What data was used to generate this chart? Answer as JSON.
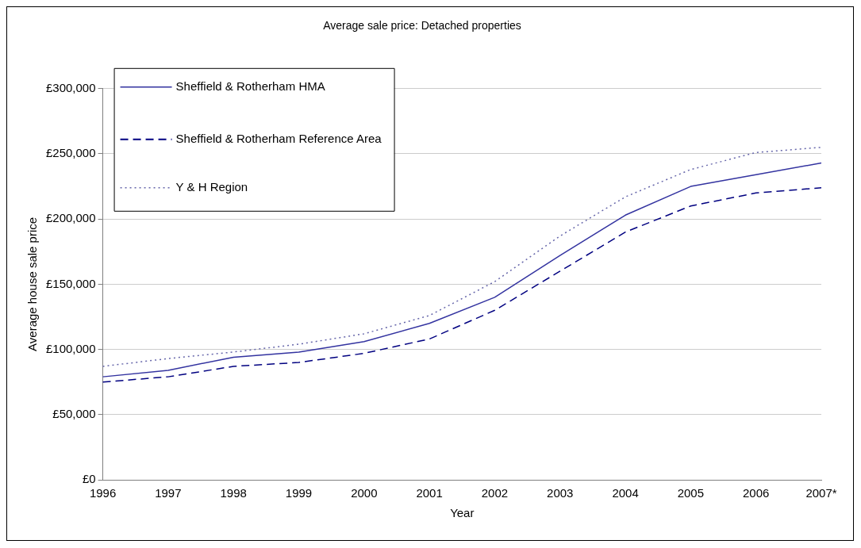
{
  "chart_data": {
    "type": "line",
    "title": "Average sale price: Detached properties",
    "xlabel": "Year",
    "ylabel": "Average house sale price",
    "categories": [
      "1996",
      "1997",
      "1998",
      "1999",
      "2000",
      "2001",
      "2002",
      "2003",
      "2004",
      "2005",
      "2006",
      "2007*"
    ],
    "series": [
      {
        "name": "Sheffield & Rotherham HMA",
        "color": "#3333a0",
        "line_style": "solid",
        "values": [
          79000,
          84000,
          94000,
          98000,
          106000,
          120000,
          140000,
          172000,
          203000,
          225000,
          234000,
          243000
        ]
      },
      {
        "name": "Sheffield & Rotherham Reference Area",
        "color": "#000080",
        "line_style": "dashed",
        "values": [
          75000,
          79000,
          87000,
          90000,
          97000,
          108000,
          130000,
          160000,
          190000,
          210000,
          220000,
          224000
        ]
      },
      {
        "name": "Y & H Region",
        "color": "#6666aa",
        "line_style": "dotted",
        "values": [
          87000,
          93000,
          98000,
          104000,
          112000,
          126000,
          152000,
          187000,
          217000,
          238000,
          251000,
          255000
        ]
      }
    ],
    "ylim": [
      0,
      300000
    ],
    "yticks": [
      {
        "value": 0,
        "label": "£0"
      },
      {
        "value": 50000,
        "label": "£50,000"
      },
      {
        "value": 100000,
        "label": "£100,000"
      },
      {
        "value": 150000,
        "label": "£150,000"
      },
      {
        "value": 200000,
        "label": "£200,000"
      },
      {
        "value": 250000,
        "label": "£250,000"
      },
      {
        "value": 300000,
        "label": "£300,000"
      }
    ],
    "grid": "y",
    "legend": "top left",
    "marker": "none"
  }
}
